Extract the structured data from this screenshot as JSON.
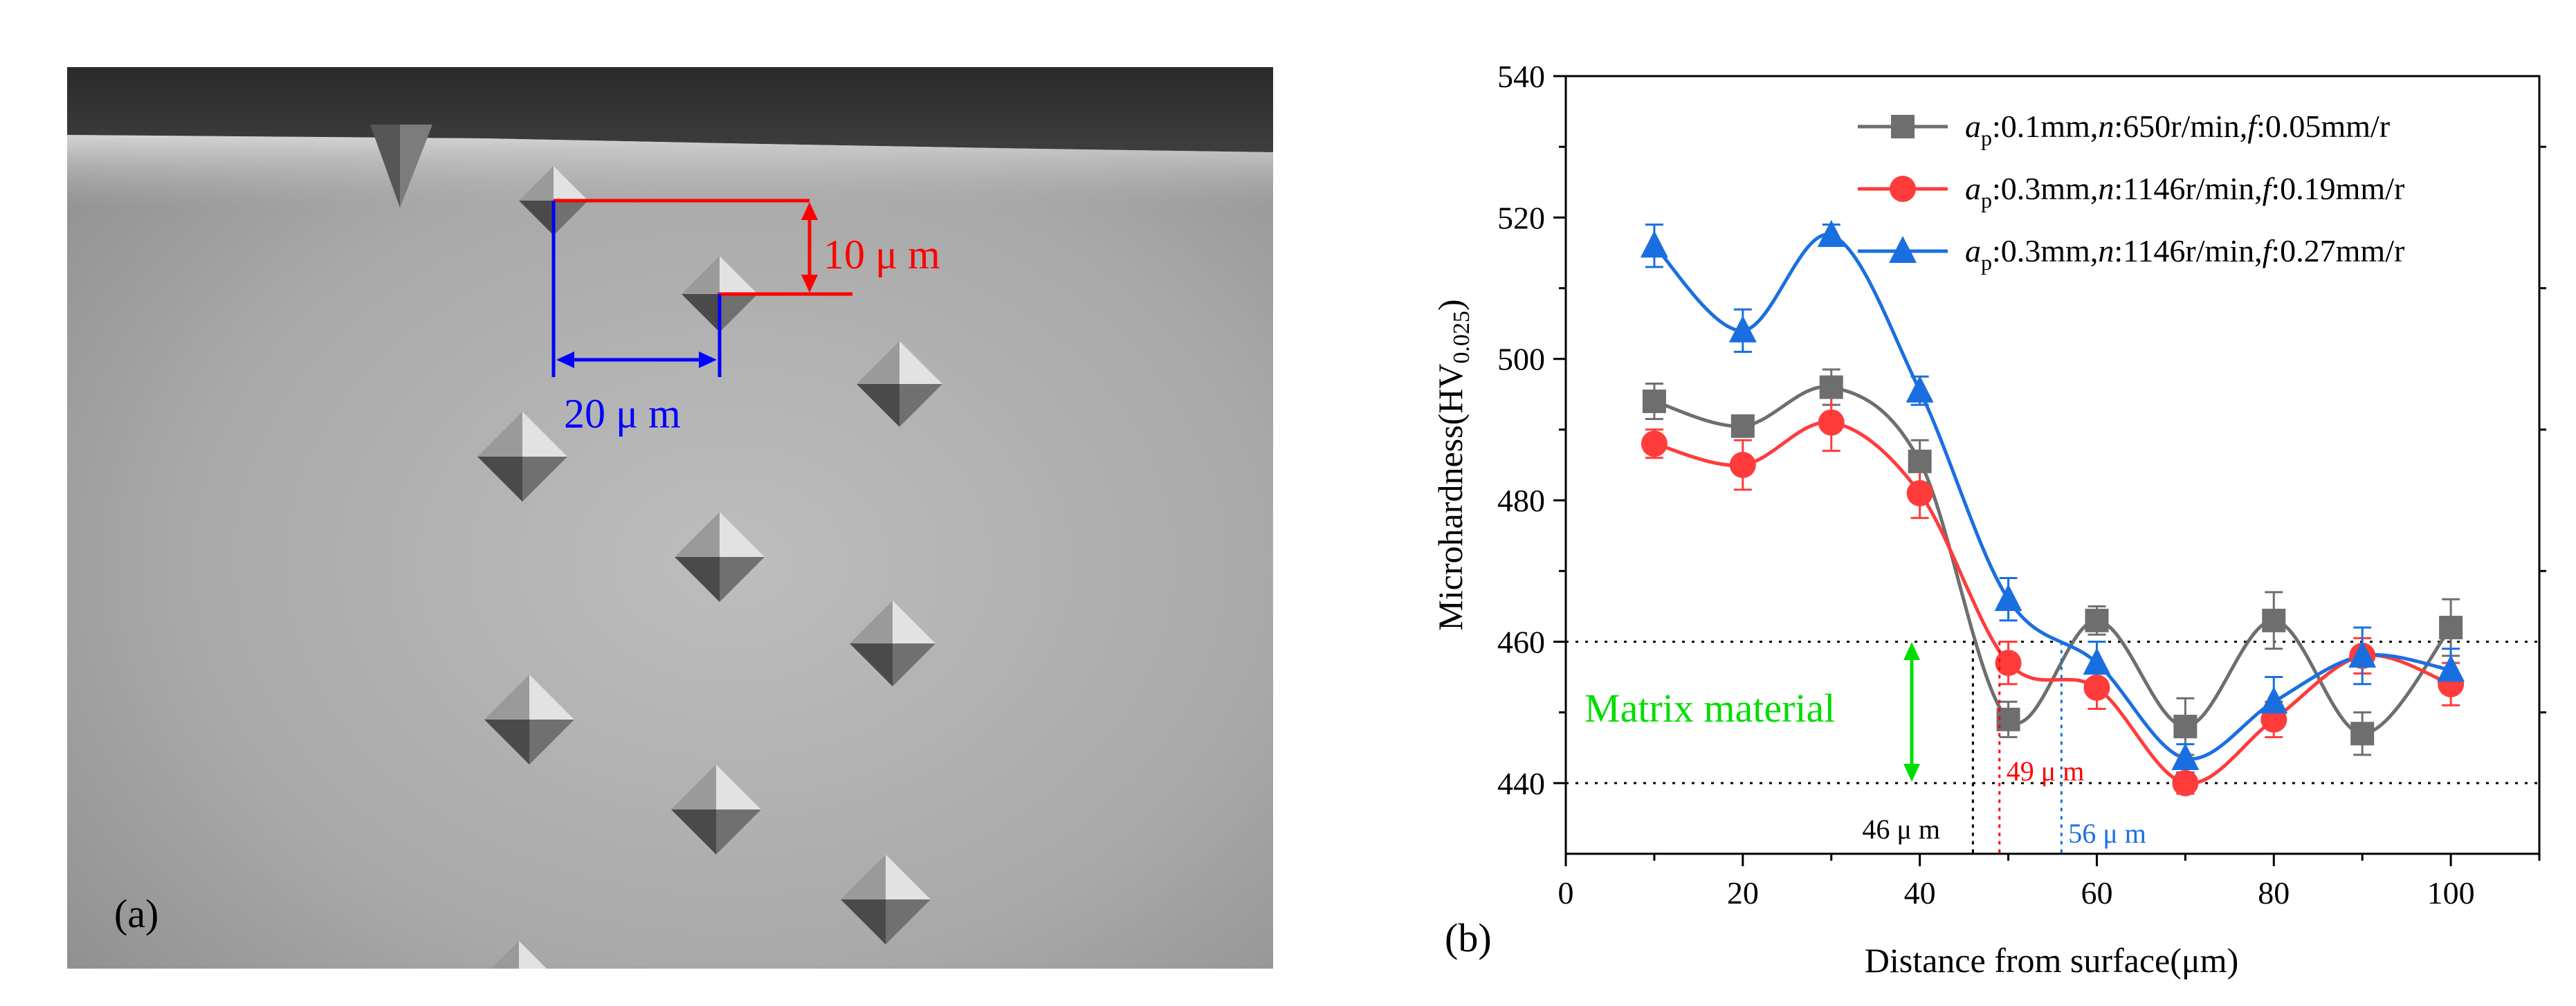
{
  "panel_a": {
    "label": "(a)",
    "annotations": {
      "vertical_spacing": "10 μ m",
      "horizontal_spacing": "20 μ m"
    },
    "colors": {
      "vertical": "#ff0000",
      "horizontal": "#0000ff"
    }
  },
  "chart_data": {
    "type": "line",
    "panel_label": "(b)",
    "xlabel": "Distance from surface(μm)",
    "ylabel": {
      "main": "Microhardness(HV",
      "sub": "0.025",
      "close": ")"
    },
    "xlim": [
      0,
      110
    ],
    "ylim": [
      430,
      540
    ],
    "x_ticks": [
      0,
      20,
      40,
      60,
      80,
      100
    ],
    "y_ticks": [
      440,
      460,
      480,
      500,
      520,
      540
    ],
    "x": [
      10,
      20,
      30,
      40,
      50,
      60,
      70,
      80,
      90,
      100
    ],
    "series": [
      {
        "marker": "square",
        "color": "#6e6e6e",
        "legend": {
          "a": "a",
          "a_sub": "p",
          "t1": ":0.1mm,",
          "n": "n",
          "t2": ":650r/min,",
          "f": "f",
          "t3": ":0.05mm/r"
        },
        "values": [
          494,
          490.5,
          496,
          485.5,
          449,
          463,
          448,
          463,
          447,
          462
        ],
        "errors": [
          2.5,
          1.5,
          2.5,
          3,
          2.5,
          2,
          4,
          4,
          3,
          4
        ]
      },
      {
        "marker": "circle",
        "color": "#ff3b3b",
        "legend": {
          "a": "a",
          "a_sub": "p",
          "t1": ":0.3mm,",
          "n": "n",
          "t2": ":1146r/min,",
          "f": "f",
          "t3": ":0.19mm/r"
        },
        "values": [
          488,
          485,
          491,
          481,
          457,
          453.5,
          440,
          449,
          458,
          454
        ],
        "errors": [
          2,
          3.5,
          4,
          3.5,
          3,
          3,
          1.5,
          2.5,
          2.5,
          3
        ]
      },
      {
        "marker": "triangle",
        "color": "#1a6fe0",
        "legend": {
          "a": "a",
          "a_sub": "p",
          "t1": ":0.3mm,",
          "n": "n",
          "t2": ":1146r/min,",
          "f": "f",
          "t3": ":0.27mm/r"
        },
        "values": [
          516,
          504,
          517.5,
          495.5,
          466,
          457,
          443.5,
          451.5,
          458,
          456
        ],
        "errors": [
          3,
          3,
          1.5,
          2,
          3,
          3,
          2,
          3.5,
          4,
          3
        ]
      }
    ],
    "reference_lines": [
      440,
      460
    ],
    "matrix_label": "Matrix material",
    "crossings": [
      {
        "x": 46,
        "label": "46 μ m",
        "color": "#000000"
      },
      {
        "x": 49,
        "label": "49 μ m",
        "color": "#ff0000"
      },
      {
        "x": 56,
        "label": "56 μ m",
        "color": "#1a6fe0"
      }
    ]
  }
}
